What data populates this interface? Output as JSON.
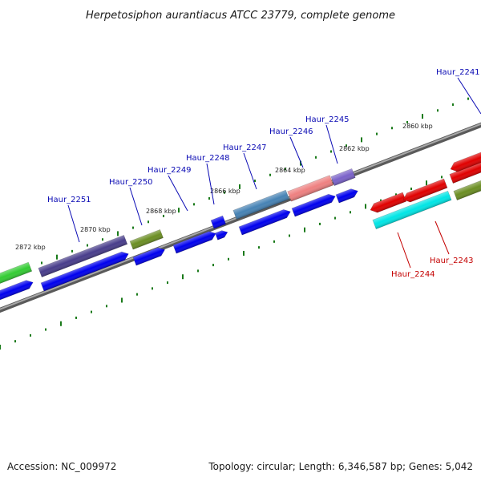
{
  "title": "Herpetosiphon aurantiacus ATCC 23779, complete genome",
  "footer": {
    "accession": "Accession: NC_009972",
    "summary": "Topology: circular; Length: 6,346,587 bp; Genes: 5,042"
  },
  "colors": {
    "backbone": "#808080",
    "cds": "#0000ee",
    "tick": "#1a7a1a",
    "label_forward": "#0a0ab4",
    "label_reverse": "#c40000"
  },
  "chart_data": {
    "type": "genome-map",
    "strand_note": "forward genes above backbone, reverse genes below",
    "ticks": [
      {
        "label": "2860 kbp"
      },
      {
        "label": "2862 kbp"
      },
      {
        "label": "2864 kbp"
      },
      {
        "label": "2866 kbp"
      },
      {
        "label": "2868 kbp"
      },
      {
        "label": "2870 kbp"
      },
      {
        "label": "2872 kbp"
      }
    ],
    "genes": [
      {
        "name": "Haur_2241",
        "strand": "+",
        "color": "#e00000"
      },
      {
        "name": "Haur_2243",
        "strand": "-",
        "color": "#e00000"
      },
      {
        "name": "Haur_2244",
        "strand": "-",
        "color": "#00e5e5"
      },
      {
        "name": "Haur_2245",
        "strand": "+",
        "color": "#7a62c9"
      },
      {
        "name": "Haur_2246",
        "strand": "+",
        "color": "#ee8080"
      },
      {
        "name": "Haur_2247",
        "strand": "+",
        "color": "#4682b4"
      },
      {
        "name": "Haur_2248",
        "strand": "+",
        "color": "#0000ee"
      },
      {
        "name": "Haur_2249",
        "strand": "+",
        "color": "#0000ee"
      },
      {
        "name": "Haur_2250",
        "strand": "+",
        "color": "#6b8e23"
      },
      {
        "name": "Haur_2251",
        "strand": "+",
        "color": "#483d8b"
      }
    ]
  }
}
